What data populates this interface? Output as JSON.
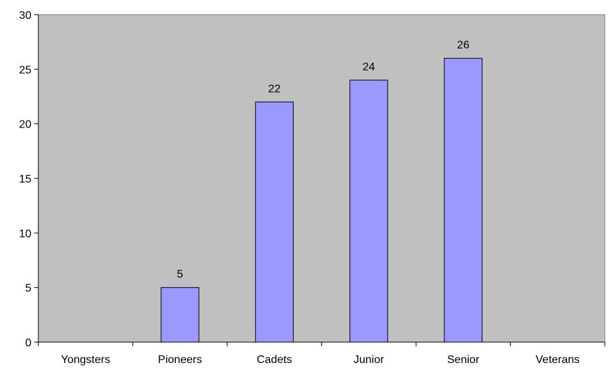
{
  "chart_data": {
    "type": "bar",
    "title": "",
    "xlabel": "",
    "ylabel": "",
    "categories": [
      "Yongsters",
      "Pioneers",
      "Cadets",
      "Junior",
      "Senior",
      "Veterans"
    ],
    "values": [
      0,
      5,
      22,
      24,
      26,
      0
    ],
    "data_labels": [
      "",
      "5",
      "22",
      "24",
      "26",
      ""
    ],
    "ylim": [
      0,
      30
    ],
    "yticks": [
      0,
      5,
      10,
      15,
      20,
      25,
      30
    ],
    "grid": false,
    "legend": "none",
    "colors": {
      "plot_background": "#c0c0c0",
      "bar_fill": "#9999ff",
      "bar_stroke": "#000000",
      "axis": "#000000"
    }
  }
}
